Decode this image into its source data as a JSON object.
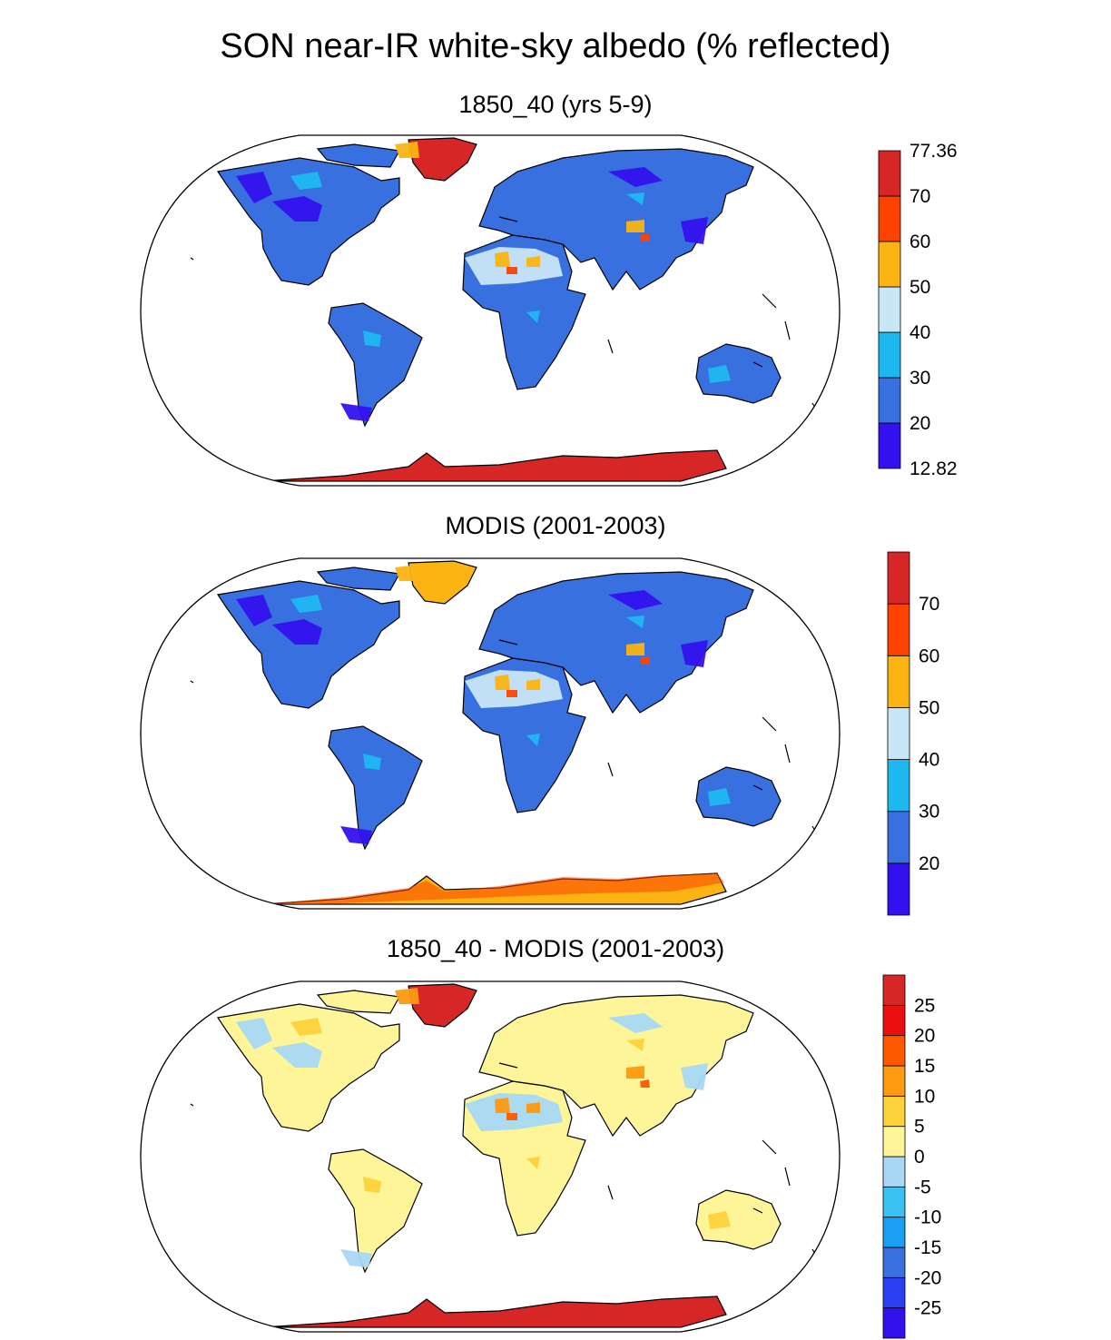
{
  "figure": {
    "title": "SON near-IR white-sky albedo (% reflected)"
  },
  "panels": [
    {
      "title": "1850_40 (yrs 5-9)",
      "colorbar": {
        "colors": [
          "#3311ee",
          "#3870e0",
          "#1eb8f0",
          "#c8e6f6",
          "#fbb412",
          "#fe4200",
          "#d62726"
        ],
        "labels": [
          "12.82",
          "20",
          "30",
          "40",
          "50",
          "60",
          "70",
          "77.36"
        ]
      },
      "palette": {
        "land_main": "#3870e0",
        "land_low": "#3311ee",
        "land_mid": "#1eb8f0",
        "desert": "#c8e6f6",
        "desert_hi": "#fbb412",
        "hot": "#fe4200",
        "ice": "#d62726"
      }
    },
    {
      "title": "MODIS (2001-2003)",
      "colorbar": {
        "colors": [
          "#3311ee",
          "#3870e0",
          "#1eb8f0",
          "#c8e6f6",
          "#fbb412",
          "#fe4200",
          "#d62726"
        ],
        "labels": [
          "20",
          "30",
          "40",
          "50",
          "60",
          "70"
        ]
      },
      "palette": {
        "land_main": "#3870e0",
        "land_low": "#3311ee",
        "land_mid": "#1eb8f0",
        "desert": "#c8e6f6",
        "desert_hi": "#fbb412",
        "hot": "#fe4200",
        "ice": "#fbb412"
      }
    },
    {
      "title": "1850_40 - MODIS (2001-2003)",
      "colorbar": {
        "colors": [
          "#3311ee",
          "#2a3ff0",
          "#3870e0",
          "#1a9ff2",
          "#3ac2f2",
          "#a8d8f4",
          "#fdf598",
          "#fdd23a",
          "#fd9a10",
          "#fd5a00",
          "#ec0f0f",
          "#d62726"
        ],
        "labels": [
          "-25",
          "-20",
          "-15",
          "-10",
          "-5",
          "0",
          "5",
          "10",
          "15",
          "20",
          "25"
        ]
      },
      "palette": {
        "land_main": "#fdf598",
        "land_low": "#a8d8f4",
        "land_mid": "#fdd23a",
        "desert": "#a8d8f4",
        "desert_hi": "#fd9a10",
        "hot": "#fd5a00",
        "ice": "#d62726"
      }
    }
  ]
}
